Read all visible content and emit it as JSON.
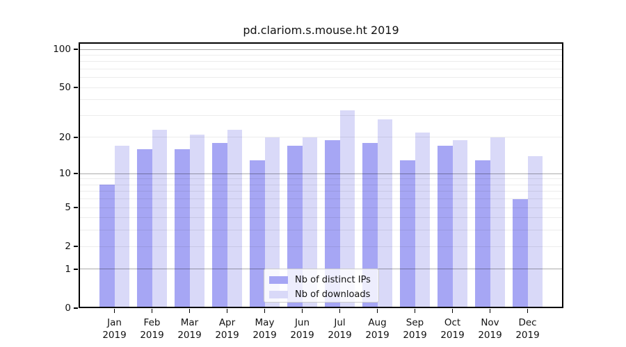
{
  "chart_data": {
    "type": "bar",
    "title": "pd.clariom.s.mouse.ht 2019",
    "categories": [
      "Jan",
      "Feb",
      "Mar",
      "Apr",
      "May",
      "Jun",
      "Jul",
      "Aug",
      "Sep",
      "Oct",
      "Nov",
      "Dec"
    ],
    "year_label": "2019",
    "series": [
      {
        "name": "Nb of distinct IPs",
        "color": "#a6a6f4",
        "values": [
          8,
          16,
          16,
          18,
          13,
          17,
          19,
          18,
          13,
          17,
          13,
          6
        ]
      },
      {
        "name": "Nb of downloads",
        "color": "#d9d9f8",
        "values": [
          17,
          23,
          21,
          23,
          20,
          20,
          33,
          28,
          22,
          19,
          20,
          14
        ]
      }
    ],
    "yaxis": {
      "scale": "log1p",
      "tick_values": [
        0,
        1,
        2,
        5,
        10,
        20,
        50,
        100
      ],
      "major_gridlines": [
        1,
        10,
        100
      ],
      "minor_gridlines": [
        2,
        3,
        4,
        5,
        6,
        7,
        8,
        9,
        20,
        30,
        40,
        50,
        60,
        70,
        80,
        90
      ],
      "ylim": [
        0,
        100
      ]
    },
    "legend": {
      "position": "bottom-center"
    }
  }
}
